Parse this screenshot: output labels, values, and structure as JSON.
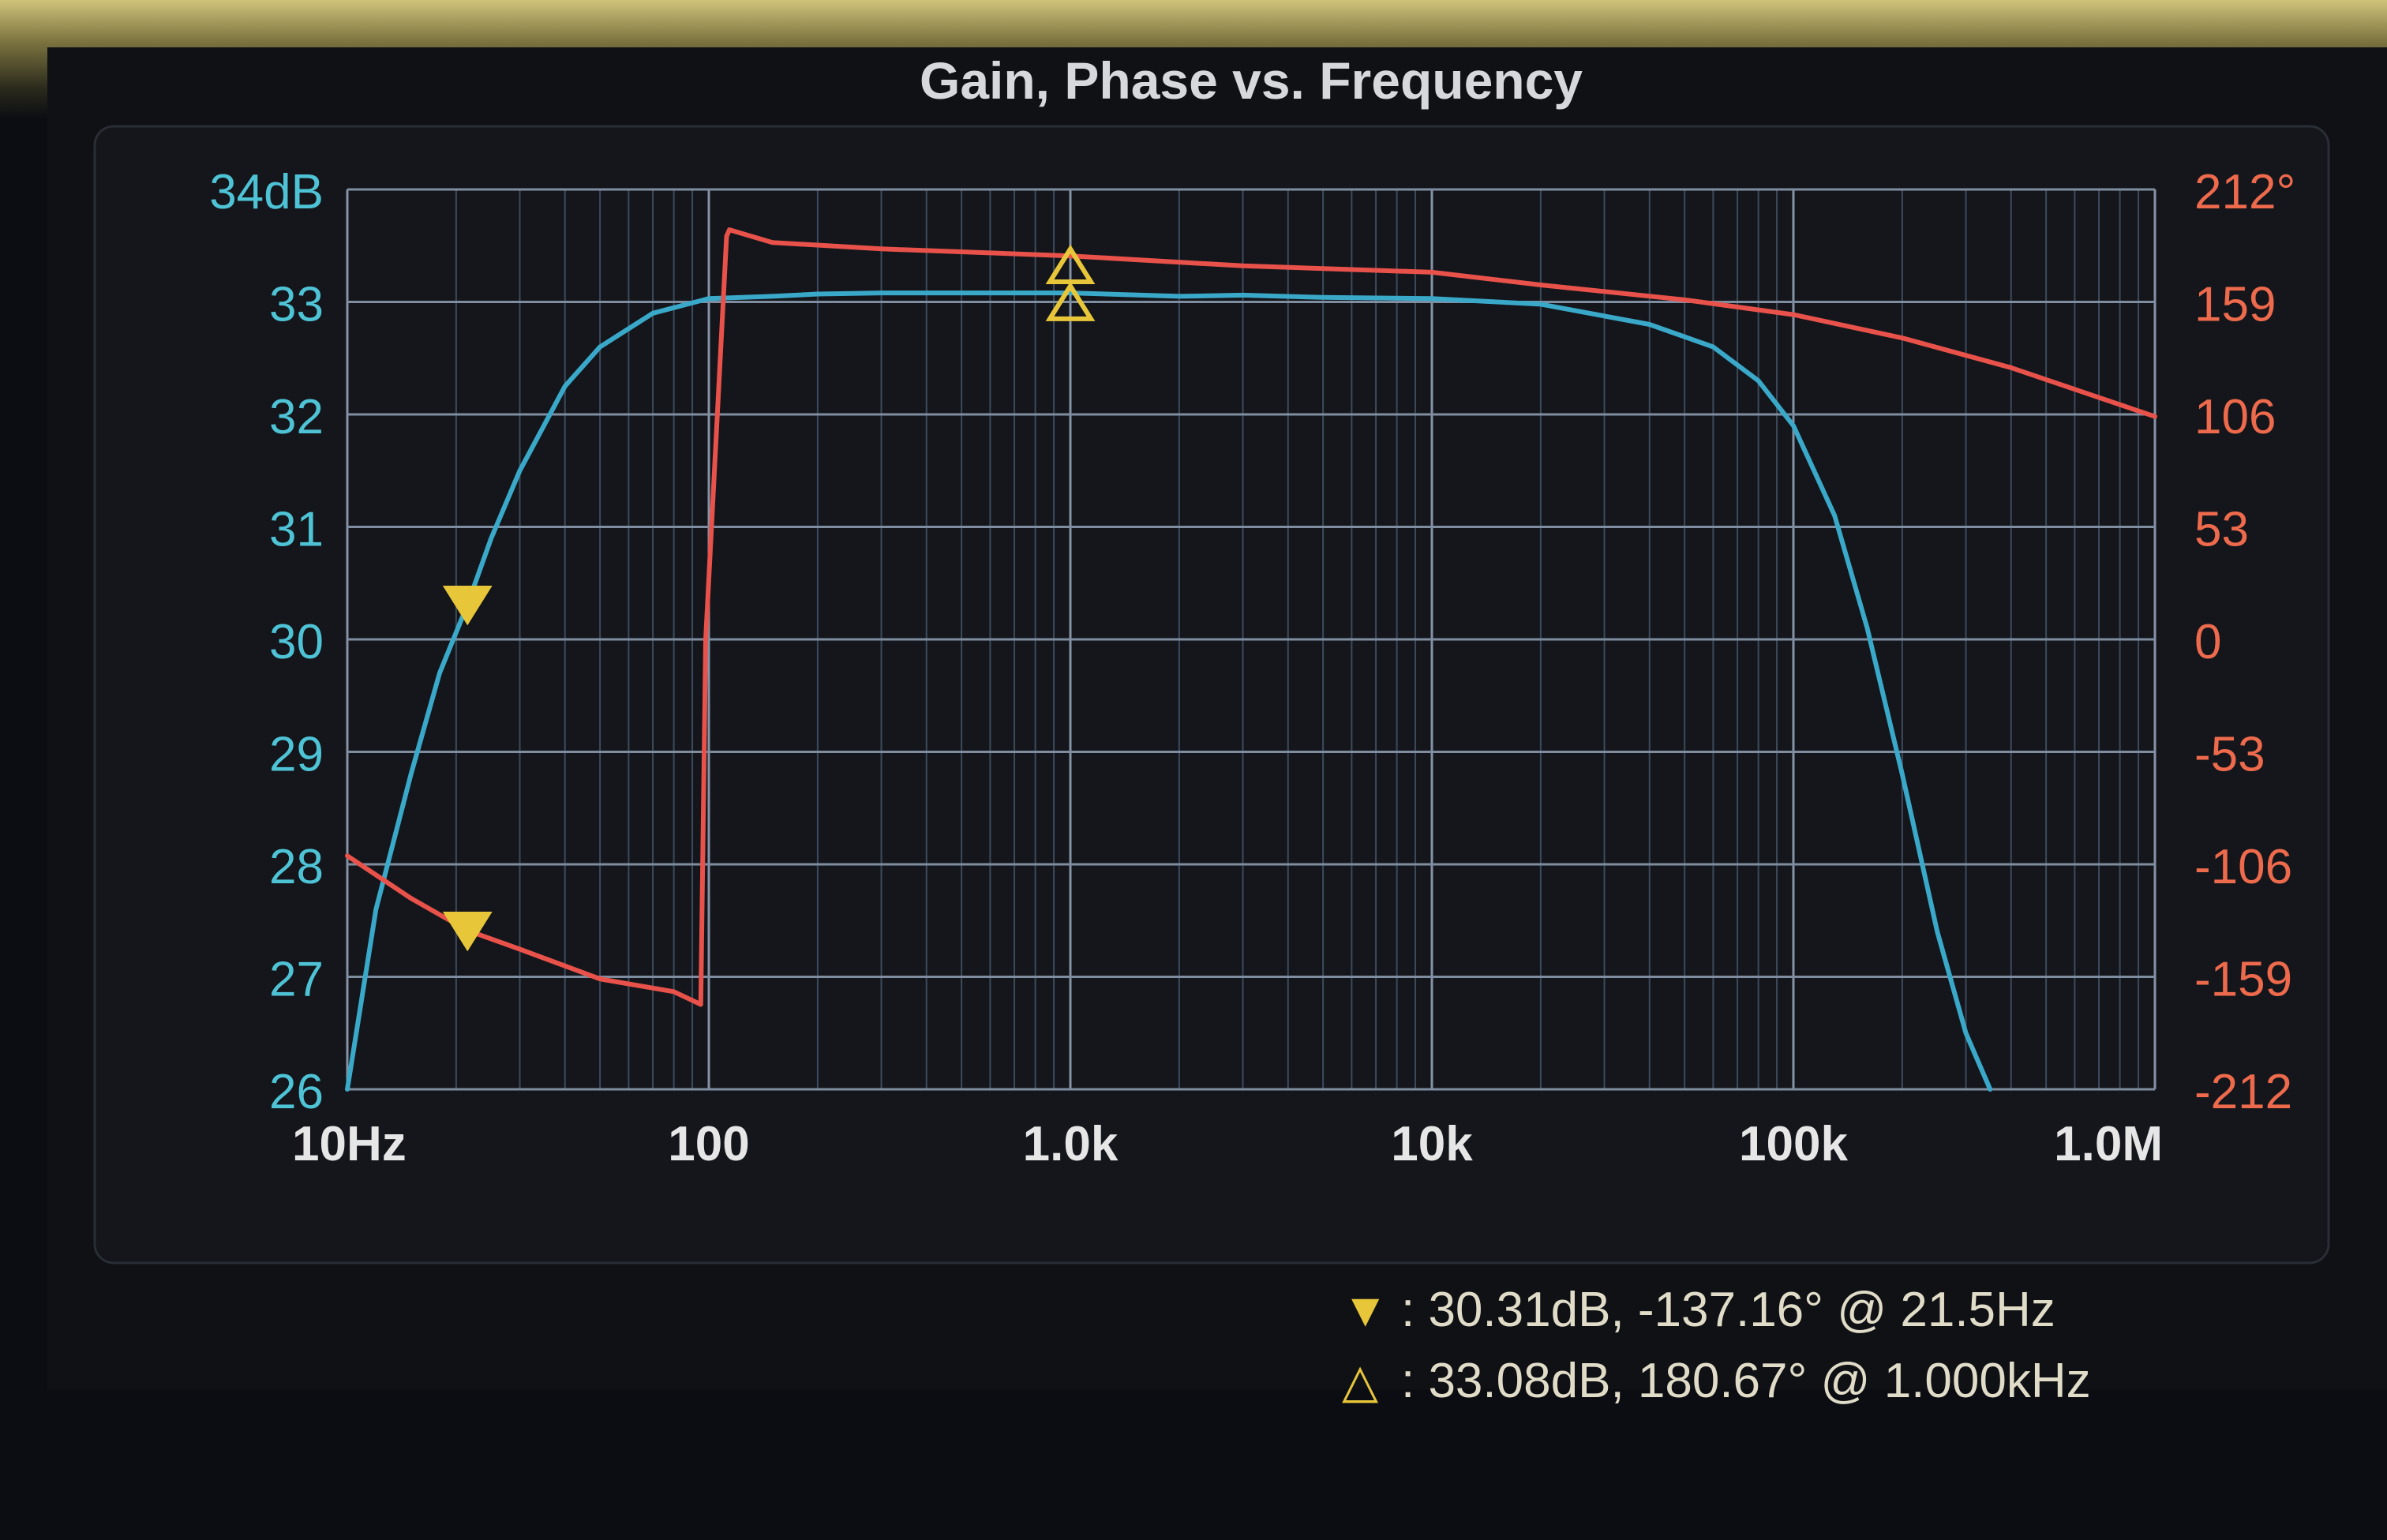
{
  "chart_data": {
    "type": "line",
    "title": "Gain, Phase vs. Frequency",
    "x_scale": "log",
    "xlim": [
      10,
      1000000
    ],
    "x_tick_values": [
      10,
      100,
      1000,
      10000,
      100000,
      1000000
    ],
    "x_tick_labels": [
      "10Hz",
      "100",
      "1.0k",
      "10k",
      "100k",
      "1.0M"
    ],
    "y_left": {
      "range": [
        26,
        34
      ],
      "tick_values": [
        26,
        27,
        28,
        29,
        30,
        31,
        32,
        33,
        34
      ],
      "tick_labels": [
        "26",
        "27",
        "28",
        "29",
        "30",
        "31",
        "32",
        "33",
        "34dB"
      ],
      "color": "#4fc3d6"
    },
    "y_right": {
      "range": [
        -212,
        212
      ],
      "tick_values": [
        -212,
        -159,
        -106,
        -53,
        0,
        53,
        106,
        159,
        212
      ],
      "tick_labels": [
        "-212",
        "-159",
        "-106",
        "-53",
        "0",
        "53",
        "106",
        "159",
        "212°"
      ],
      "color": "#ee6a4c"
    },
    "series": [
      {
        "name": "Gain",
        "axis": "left",
        "color": "#3aa9c9",
        "x": [
          10,
          12,
          15,
          18,
          21.5,
          25,
          30,
          40,
          50,
          70,
          100,
          150,
          200,
          300,
          500,
          700,
          1000,
          2000,
          3000,
          5000,
          10000,
          20000,
          40000,
          60000,
          80000,
          100000,
          130000,
          160000,
          200000,
          250000,
          300000,
          350000
        ],
        "values": [
          26.0,
          27.6,
          28.8,
          29.7,
          30.31,
          30.9,
          31.5,
          32.25,
          32.6,
          32.9,
          33.03,
          33.05,
          33.07,
          33.08,
          33.08,
          33.08,
          33.08,
          33.05,
          33.06,
          33.04,
          33.03,
          32.98,
          32.8,
          32.6,
          32.3,
          31.9,
          31.1,
          30.1,
          28.8,
          27.4,
          26.5,
          25.9
        ]
      },
      {
        "name": "Phase",
        "axis": "right",
        "color": "#e8524a",
        "x": [
          10,
          15,
          21.5,
          30,
          50,
          80,
          95,
          98,
          112,
          114,
          150,
          300,
          1000,
          3000,
          10000,
          20000,
          50000,
          100000,
          200000,
          400000,
          1000000
        ],
        "values": [
          -102,
          -122,
          -137.16,
          -146,
          -160,
          -166,
          -172,
          0,
          190,
          193,
          187,
          184,
          180.67,
          176,
          173,
          167,
          160,
          153,
          142,
          128,
          105
        ]
      }
    ],
    "markers": [
      {
        "symbol": "down-triangle",
        "x": 21.5,
        "gain": 30.31,
        "phase": -137.16
      },
      {
        "symbol": "up-triangle",
        "x": 1000,
        "gain": 33.08,
        "phase": 180.67
      }
    ],
    "readouts": [
      {
        "symbol": "▼",
        "text": ": 30.31dB, -137.16° @ 21.5Hz"
      },
      {
        "symbol": "△",
        "text": ": 33.08dB, 180.67° @ 1.000kHz"
      }
    ]
  }
}
